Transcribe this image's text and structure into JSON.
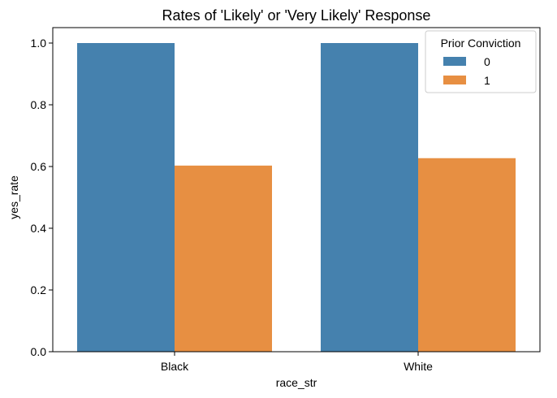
{
  "chart_data": {
    "type": "bar",
    "title": "Rates of 'Likely' or 'Very Likely' Response",
    "xlabel": "race_str",
    "ylabel": "yes_rate",
    "categories": [
      "Black",
      "White"
    ],
    "series": [
      {
        "name": "0",
        "values": [
          1.0,
          1.0
        ],
        "color": "#4581ae"
      },
      {
        "name": "1",
        "values": [
          0.603,
          0.627
        ],
        "color": "#e78f42"
      }
    ],
    "ylim": [
      0,
      1.05
    ],
    "yticks": [
      0.0,
      0.2,
      0.4,
      0.6,
      0.8,
      1.0
    ],
    "ytick_labels": [
      "0.0",
      "0.2",
      "0.4",
      "0.6",
      "0.8",
      "1.0"
    ],
    "legend": {
      "title": "Prior Conviction",
      "placement": "top-right"
    },
    "grid": false
  }
}
